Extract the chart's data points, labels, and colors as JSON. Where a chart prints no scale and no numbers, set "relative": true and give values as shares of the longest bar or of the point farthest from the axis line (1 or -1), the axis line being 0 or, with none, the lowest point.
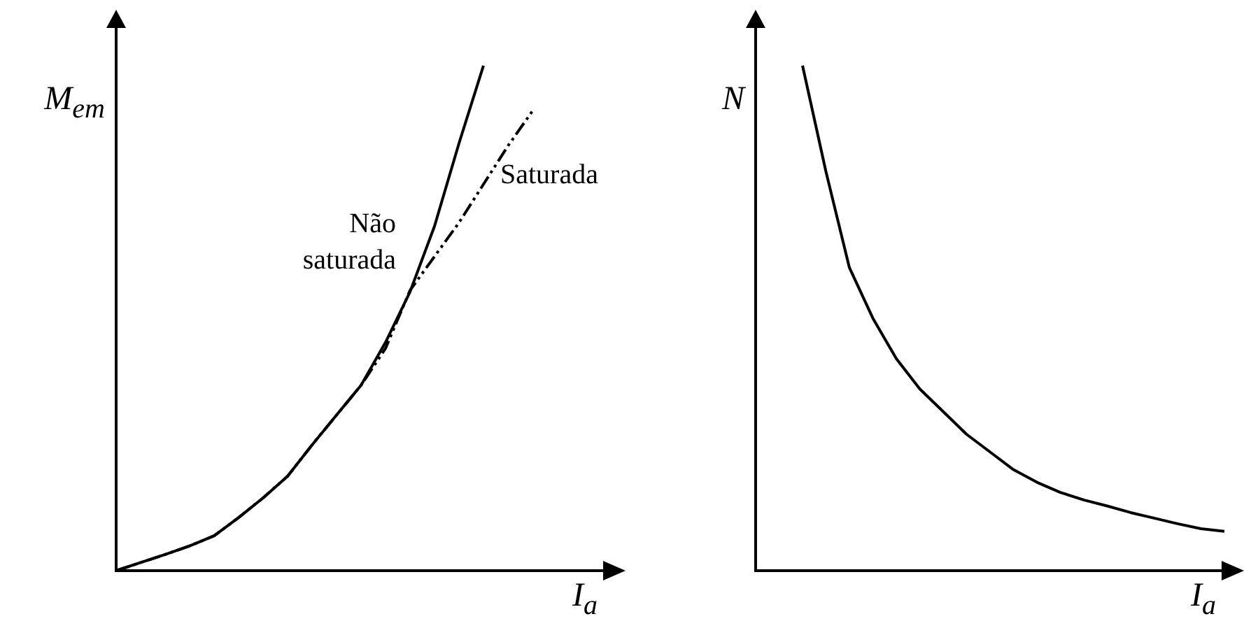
{
  "chart_data": [
    {
      "type": "line",
      "relative": true,
      "xlabel": "I$_{a}$",
      "ylabel": "M$_{em}$",
      "legend": false,
      "marker": "none",
      "categories": [
        null,
        null,
        null,
        null,
        null,
        null,
        null,
        null,
        null,
        null,
        null,
        null,
        null,
        null,
        null,
        null,
        null,
        null,
        null,
        null,
        null
      ],
      "series": [
        {
          "name": "Não saturada",
          "color": "#000000",
          "line_style": "solid",
          "values": [
            0,
            0.016,
            0.032,
            0.049,
            0.069,
            0.105,
            0.144,
            0.187,
            0.249,
            0.308,
            0.367,
            0.452,
            0.552,
            0.682,
            0.846,
            1.0,
            null,
            null,
            null,
            null,
            null
          ]
        },
        {
          "name": "Saturada",
          "color": "#000000",
          "line_style": "dashed",
          "values": [
            0,
            0.016,
            0.032,
            0.049,
            0.069,
            0.105,
            0.144,
            0.187,
            0.249,
            0.308,
            0.367,
            0.44,
            0.555,
            0.622,
            0.689,
            0.765,
            0.841,
            0.91,
            null,
            null,
            null
          ]
        }
      ]
    },
    {
      "type": "line",
      "relative": true,
      "xlabel": "I$_{a}$",
      "ylabel": "N",
      "legend": false,
      "marker": "none",
      "categories": [
        null,
        null,
        null,
        null,
        null,
        null,
        null,
        null,
        null,
        null,
        null,
        null,
        null,
        null,
        null,
        null,
        null,
        null,
        null,
        null,
        null
      ],
      "series": [
        {
          "color": "#000000",
          "line_style": "solid",
          "values": [
            null,
            null,
            1.0,
            0.79,
            0.6,
            0.5,
            0.42,
            0.36,
            0.315,
            0.27,
            0.235,
            0.2,
            0.175,
            0.155,
            0.14,
            0.128,
            0.115,
            0.104,
            0.093,
            0.083,
            0.078
          ]
        }
      ]
    }
  ]
}
